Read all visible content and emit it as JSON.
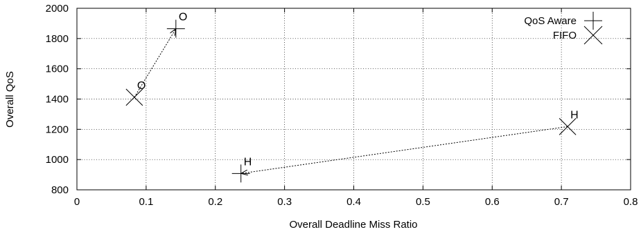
{
  "chart_data": {
    "type": "scatter",
    "xlabel": "Overall Deadline Miss Ratio",
    "ylabel": "Overall QoS",
    "xlim": [
      0,
      0.8
    ],
    "ylim": [
      800,
      2000
    ],
    "xticks": [
      "0",
      "0.1",
      "0.2",
      "0.3",
      "0.4",
      "0.5",
      "0.6",
      "0.7",
      "0.8"
    ],
    "yticks": [
      "800",
      "1000",
      "1200",
      "1400",
      "1600",
      "1800",
      "2000"
    ],
    "grid": true,
    "legend_position": "top-right",
    "series": [
      {
        "name": "QoS Aware",
        "marker": "plus",
        "points": [
          {
            "x": 0.143,
            "y": 1865,
            "label": "O"
          },
          {
            "x": 0.237,
            "y": 908,
            "label": "H"
          }
        ]
      },
      {
        "name": "FIFO",
        "marker": "cross",
        "points": [
          {
            "x": 0.083,
            "y": 1412,
            "label": "O"
          },
          {
            "x": 0.709,
            "y": 1218,
            "label": "H"
          }
        ]
      }
    ],
    "arrows": [
      {
        "from": {
          "x": 0.083,
          "y": 1412
        },
        "to": {
          "x": 0.143,
          "y": 1865
        }
      },
      {
        "from": {
          "x": 0.709,
          "y": 1218
        },
        "to": {
          "x": 0.237,
          "y": 908
        }
      }
    ]
  }
}
